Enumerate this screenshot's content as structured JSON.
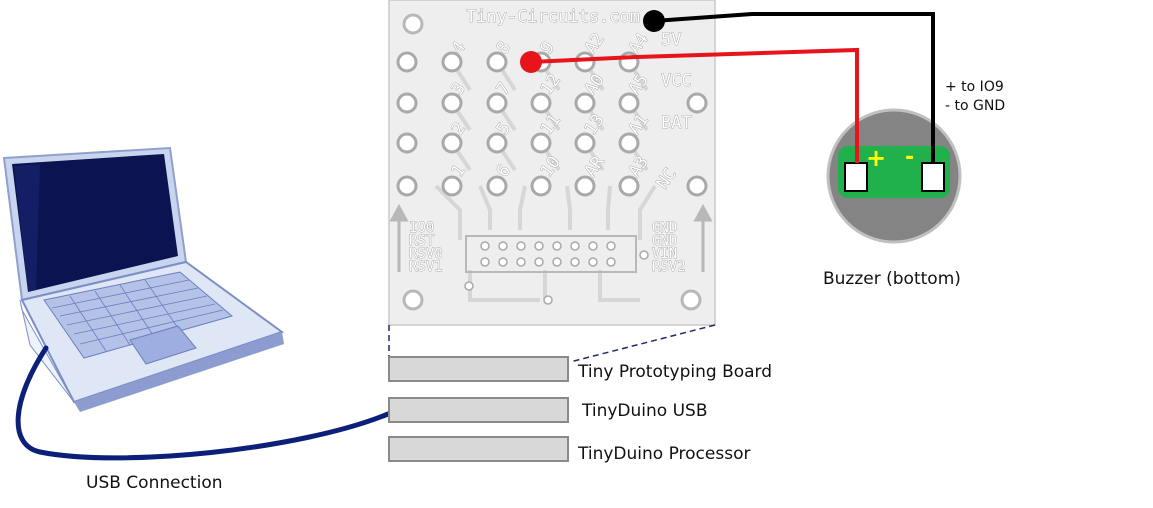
{
  "board": {
    "brand": "Tiny-Circuits.com",
    "pins_top": [
      [
        "4",
        "8",
        "9",
        "A2",
        "A4"
      ],
      [
        "3",
        "7",
        "12",
        "A0",
        "A5"
      ],
      [
        "2",
        "5",
        "11",
        "13",
        "A1"
      ],
      [
        "1",
        "6",
        "10",
        "AR",
        "A3"
      ]
    ],
    "power_labels": [
      "5V",
      "VCC",
      "BAT",
      "NC"
    ],
    "left_labels": [
      "IO0",
      "RST",
      "RSV0",
      "RSV1"
    ],
    "right_labels": [
      "GND",
      "GND",
      "VIN",
      "RSV2"
    ]
  },
  "stack": {
    "layers": [
      "Tiny Prototyping Board",
      "TinyDuino USB",
      "TinyDuino Processor"
    ]
  },
  "laptop": {
    "cable_label": "USB Connection"
  },
  "buzzer": {
    "plus_symbol": "+",
    "minus_symbol": "-",
    "wiring_note_1": "+ to IO9",
    "wiring_note_2": "- to GND",
    "caption": "Buzzer (bottom)"
  },
  "colors": {
    "wire_red": "#e8141c",
    "wire_black": "#000000",
    "usb_cable": "#0c2079",
    "buzzer_body": "#848484",
    "buzzer_pcb": "#21b14c",
    "pcb_board": "#eeeeee"
  }
}
